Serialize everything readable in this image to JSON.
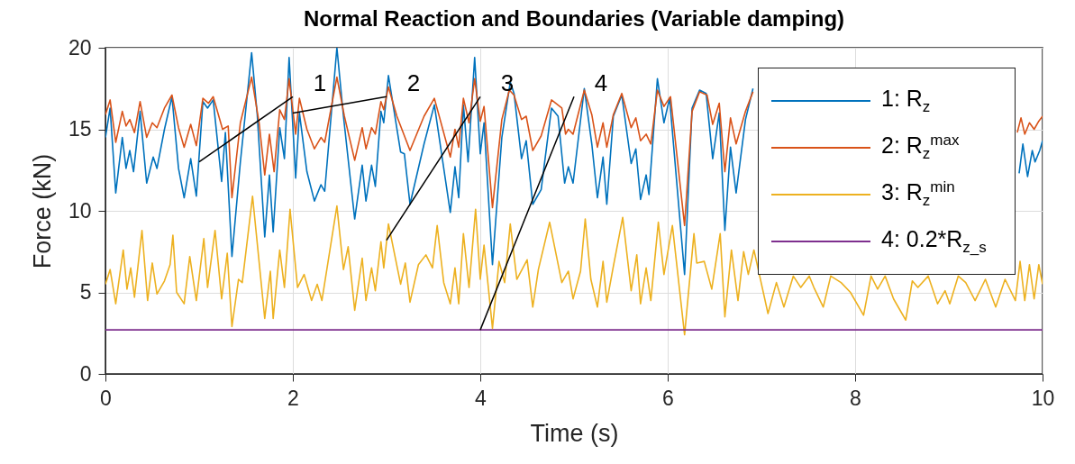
{
  "chart_data": {
    "type": "line",
    "title": "Normal Reaction and Boundaries (Variable damping)",
    "xlabel": "Time (s)",
    "ylabel": "Force (kN)",
    "xlim": [
      0,
      10
    ],
    "xticks": [
      0,
      2,
      4,
      6,
      8,
      10
    ],
    "ylim": [
      0,
      20
    ],
    "yticks": [
      0,
      5,
      10,
      15,
      20
    ],
    "grid": true,
    "legend": "top right",
    "line_style": "solid",
    "annotations": [
      {
        "text": "1",
        "x": 1,
        "y": 13
      },
      {
        "text": "2",
        "x": 2,
        "y": 16
      },
      {
        "text": "3",
        "x": 3,
        "y": 8.2
      },
      {
        "text": "4",
        "x": 4,
        "y": 2.7
      }
    ],
    "series": [
      {
        "name": "1: R$_{z}$",
        "color": "#0072bd",
        "x": [
          0,
          0.05,
          0.11,
          0.18,
          0.22,
          0.26,
          0.3,
          0.37,
          0.44,
          0.51,
          0.55,
          0.63,
          0.71,
          0.78,
          0.84,
          0.91,
          0.97,
          1.04,
          1.09,
          1.15,
          1.24,
          1.28,
          1.35,
          1.44,
          1.56,
          1.62,
          1.7,
          1.75,
          1.79,
          1.86,
          1.91,
          1.96,
          2.03,
          2.07,
          2.15,
          2.23,
          2.3,
          2.34,
          2.47,
          2.54,
          2.66,
          2.74,
          2.78,
          2.84,
          2.88,
          2.94,
          2.97,
          3.02,
          3.15,
          3.19,
          3.25,
          3.4,
          3.51,
          3.68,
          3.73,
          3.77,
          3.82,
          3.87,
          3.94,
          4,
          4.04,
          4.13,
          4.23,
          4.32,
          4.36,
          4.44,
          4.49,
          4.56,
          4.65,
          4.76,
          4.83,
          4.9,
          4.94,
          4.99,
          5.11,
          5.19,
          5.25,
          5.31,
          5.35,
          5.42,
          5.51,
          5.61,
          5.66,
          5.71,
          5.77,
          5.8,
          5.89,
          5.96,
          6.02,
          6.18,
          6.26,
          6.34,
          6.41,
          6.48,
          6.55,
          6.61,
          6.67,
          6.73,
          6.83,
          6.91,
          8,
          9.75,
          9.79,
          9.84,
          9.89,
          9.92,
          9.97,
          10
        ],
        "values": [
          14.5,
          16.3,
          11.1,
          14.5,
          12.6,
          13.7,
          12.4,
          16.1,
          11.7,
          13.3,
          12.6,
          15,
          17,
          12.6,
          10.8,
          13.2,
          10.9,
          16.7,
          16.3,
          16.8,
          11.8,
          14.8,
          7.2,
          13,
          19.7,
          15.9,
          8.4,
          12.2,
          8.7,
          15.1,
          13.2,
          19.4,
          12,
          16,
          12.4,
          10.6,
          11.6,
          11.2,
          20,
          15.8,
          9.5,
          12.8,
          10.6,
          12.8,
          11.5,
          16.1,
          15.4,
          18.3,
          13.6,
          13.5,
          10.4,
          14.1,
          16.5,
          9.9,
          12.7,
          10.8,
          16.5,
          13,
          19.4,
          13.5,
          15.4,
          6.7,
          14.5,
          17.9,
          17.2,
          13.2,
          14.3,
          10.4,
          11.3,
          16.3,
          15.8,
          11.7,
          12.7,
          11.7,
          17.5,
          14.1,
          10.8,
          13.3,
          10.4,
          15.8,
          17.1,
          12.9,
          13.8,
          10.7,
          12.2,
          11,
          18.1,
          15.4,
          16.9,
          6.1,
          16.3,
          17.4,
          17.2,
          13.2,
          16,
          8.8,
          13.9,
          11.1,
          15.6,
          17.5,
          null,
          12.3,
          14.1,
          12.1,
          13.7,
          13,
          13.7,
          14.3
        ]
      },
      {
        "name": "2: R$_{z}$$^{max}$",
        "color": "#d95319",
        "x": [
          0,
          0.05,
          0.11,
          0.18,
          0.22,
          0.26,
          0.31,
          0.37,
          0.44,
          0.5,
          0.55,
          0.63,
          0.71,
          0.78,
          0.84,
          0.91,
          0.97,
          1.04,
          1.1,
          1.15,
          1.25,
          1.31,
          1.35,
          1.44,
          1.56,
          1.64,
          1.7,
          1.75,
          1.8,
          1.86,
          1.91,
          1.96,
          2.03,
          2.07,
          2.15,
          2.23,
          2.3,
          2.34,
          2.47,
          2.55,
          2.66,
          2.74,
          2.78,
          2.84,
          2.88,
          2.94,
          2.97,
          3.02,
          3.11,
          3.25,
          3.4,
          3.51,
          3.68,
          3.73,
          3.77,
          3.82,
          3.88,
          3.94,
          4,
          4.04,
          4.13,
          4.23,
          4.31,
          4.36,
          4.44,
          4.49,
          4.56,
          4.65,
          4.76,
          4.87,
          4.91,
          4.94,
          4.99,
          5.11,
          5.19,
          5.25,
          5.31,
          5.35,
          5.42,
          5.51,
          5.61,
          5.66,
          5.71,
          5.77,
          5.82,
          5.89,
          5.96,
          6.03,
          6.18,
          6.26,
          6.34,
          6.42,
          6.48,
          6.55,
          6.61,
          6.67,
          6.73,
          6.83,
          6.91,
          8,
          9.73,
          9.77,
          9.81,
          9.86,
          9.91,
          9.96,
          10
        ],
        "values": [
          15.9,
          16.8,
          14.2,
          16.1,
          15.2,
          15.6,
          14.8,
          16.7,
          14.5,
          15.4,
          15.1,
          16.3,
          17.1,
          15.1,
          13.9,
          15.3,
          14,
          16.9,
          16.6,
          17,
          15,
          15.2,
          10.8,
          15.4,
          18.2,
          15.4,
          12.2,
          14.7,
          12.4,
          16.2,
          15.6,
          18.1,
          14.7,
          16.9,
          15,
          13.8,
          14.5,
          14.2,
          18.2,
          15.8,
          13.1,
          15.1,
          13.8,
          15.1,
          14.7,
          16.7,
          16.2,
          17.6,
          15.8,
          13.7,
          15.8,
          16.9,
          13.3,
          15,
          13.9,
          16.9,
          15.4,
          18.1,
          15.5,
          16.4,
          10.2,
          15.6,
          17.4,
          17.1,
          15.6,
          15.8,
          13.7,
          14.6,
          16.8,
          16.3,
          14.7,
          15,
          14.7,
          17.4,
          15.9,
          13.9,
          15.4,
          13.9,
          15.9,
          17.2,
          15.1,
          15.7,
          14.3,
          14.7,
          14.1,
          17.4,
          16.4,
          17,
          9.1,
          16.1,
          17.3,
          17.1,
          15.3,
          16.6,
          12.4,
          15.7,
          14.1,
          16.1,
          17.3,
          null,
          14.8,
          15.7,
          14.7,
          15.4,
          15,
          15.5,
          15.8
        ]
      },
      {
        "name": "3: R$_{z}$$^{min}$",
        "color": "#edb120",
        "x": [
          0,
          0.05,
          0.11,
          0.19,
          0.23,
          0.27,
          0.31,
          0.39,
          0.45,
          0.5,
          0.55,
          0.63,
          0.69,
          0.72,
          0.76,
          0.84,
          0.9,
          0.97,
          1.05,
          1.09,
          1.17,
          1.24,
          1.3,
          1.35,
          1.42,
          1.46,
          1.57,
          1.7,
          1.76,
          1.79,
          1.86,
          1.91,
          1.97,
          2.05,
          2.12,
          2.2,
          2.26,
          2.31,
          2.47,
          2.54,
          2.59,
          2.66,
          2.74,
          2.78,
          2.84,
          2.88,
          2.94,
          2.97,
          3.02,
          3.15,
          3.2,
          3.25,
          3.34,
          3.42,
          3.49,
          3.54,
          3.61,
          3.68,
          3.73,
          3.77,
          3.82,
          3.88,
          3.95,
          4,
          4.04,
          4.13,
          4.2,
          4.26,
          4.32,
          4.39,
          4.5,
          4.56,
          4.62,
          4.74,
          4.87,
          4.94,
          4.99,
          5.07,
          5.12,
          5.18,
          5.25,
          5.31,
          5.35,
          5.42,
          5.52,
          5.61,
          5.67,
          5.71,
          5.77,
          5.82,
          5.9,
          5.96,
          6.05,
          6.18,
          6.28,
          6.31,
          6.39,
          6.47,
          6.56,
          6.61,
          6.68,
          6.75,
          6.81,
          6.86,
          6.92,
          7.07,
          7.16,
          7.24,
          7.34,
          7.42,
          7.51,
          7.56,
          7.66,
          7.74,
          7.85,
          7.95,
          8.09,
          8.17,
          8.24,
          8.32,
          8.41,
          8.54,
          8.61,
          8.67,
          8.78,
          8.88,
          8.96,
          9.01,
          9.1,
          9.18,
          9.28,
          9.39,
          9.5,
          9.6,
          9.71,
          9.76,
          9.81,
          9.86,
          9.91,
          9.96,
          10
        ],
        "values": [
          5.5,
          6.4,
          4.3,
          7.6,
          5.2,
          6.5,
          4.7,
          8.8,
          4.5,
          6.8,
          4.9,
          5.7,
          6.7,
          8.5,
          5,
          4.3,
          7.2,
          4.5,
          8.3,
          5.3,
          8.8,
          4.6,
          7.4,
          2.9,
          5.8,
          5.6,
          10.9,
          3.4,
          6.3,
          3.4,
          7.6,
          5.3,
          10.1,
          5.3,
          6.1,
          4.5,
          5.5,
          4.5,
          10.3,
          6.4,
          7.8,
          3.9,
          7.1,
          4.5,
          6.5,
          5.1,
          8.1,
          6.5,
          9.2,
          5.5,
          6.8,
          4.4,
          6.7,
          7.3,
          6.5,
          9.1,
          5.6,
          4.3,
          6.5,
          4.3,
          8.6,
          5.3,
          10.1,
          5.8,
          7.9,
          2.8,
          6.9,
          5.6,
          9.2,
          5.8,
          7,
          4.1,
          6.4,
          9.3,
          5.6,
          6.3,
          4.6,
          6.3,
          9.5,
          5.8,
          4.1,
          6.9,
          4.4,
          6.6,
          9.6,
          5.1,
          7.3,
          4.3,
          6.5,
          4.5,
          9.3,
          6.1,
          9.1,
          2.4,
          8.6,
          6.8,
          6.9,
          5.2,
          8.6,
          3.5,
          7.6,
          4.5,
          7.5,
          6.1,
          7.6,
          3.7,
          5.6,
          4.1,
          6,
          5.3,
          6,
          5.3,
          4.1,
          6,
          5.6,
          5,
          3.6,
          6,
          5.2,
          6,
          4.6,
          3.3,
          5.7,
          5.3,
          6,
          4.3,
          5.1,
          4.3,
          6,
          5.6,
          4.5,
          5.8,
          4.1,
          5.8,
          4.5,
          6.9,
          4.5,
          6.7,
          4.6,
          6.7,
          5.5
        ]
      },
      {
        "name": "4: 0.2*R$_{z_s}$",
        "color": "#7e2f8e",
        "x": [
          0,
          10
        ],
        "values": [
          2.7,
          2.7
        ]
      }
    ]
  }
}
